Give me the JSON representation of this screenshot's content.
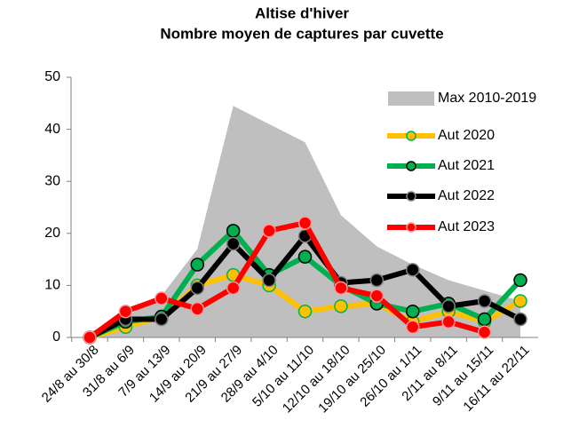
{
  "chart_data": {
    "type": "line",
    "title": "Altise d'hiver",
    "subtitle": "Nombre moyen de captures par cuvette",
    "categories": [
      "24/8 au 30/8",
      "31/8 au 6/9",
      "7/9 au 13/9",
      "14/9 au 20/9",
      "21/9 au 27/9",
      "28/9 au 4/10",
      "5/10 au 11/10",
      "12/10 au 18/10",
      "19/10 au 25/10",
      "26/10 au 1/11",
      "2/11 au 8/11",
      "9/11 au 15/11",
      "16/11 au 22/11"
    ],
    "series": [
      {
        "name": "Max 2010-2019",
        "type": "area",
        "color": "#bfbfbf",
        "values": [
          1,
          4,
          8,
          17,
          44.5,
          41,
          37.5,
          23.5,
          17.5,
          14,
          11,
          9,
          7
        ]
      },
      {
        "name": "Aut 2020",
        "color": "#ffc000",
        "marker_face": "#ffc000",
        "marker_edge": "#00b050",
        "values": [
          0,
          2,
          4,
          10,
          12,
          10,
          5,
          6,
          6.5,
          3,
          5,
          3,
          7
        ]
      },
      {
        "name": "Aut 2021",
        "color": "#00b050",
        "marker_face": "#00b050",
        "marker_edge": "#000000",
        "values": [
          0,
          3,
          4,
          14,
          20.5,
          12,
          15.5,
          10,
          6.5,
          5,
          6.5,
          3.5,
          11
        ]
      },
      {
        "name": "Aut 2022",
        "color": "#000000",
        "marker_face": "#000000",
        "marker_edge": "#7f7f7f",
        "values": [
          0,
          3.5,
          3.5,
          9.5,
          18,
          11,
          19.5,
          10.5,
          11,
          13,
          6,
          7,
          3.5
        ]
      },
      {
        "name": "Aut 2023",
        "color": "#ff0000",
        "marker_face": "#ff0000",
        "marker_edge": "#ff9999",
        "values": [
          0,
          5,
          7.5,
          5.5,
          9.5,
          20.5,
          22,
          9.5,
          8,
          2,
          3,
          1,
          null
        ]
      }
    ],
    "ylim": [
      0,
      50
    ],
    "yticks": [
      0,
      10,
      20,
      30,
      40,
      50
    ],
    "grid": false
  }
}
